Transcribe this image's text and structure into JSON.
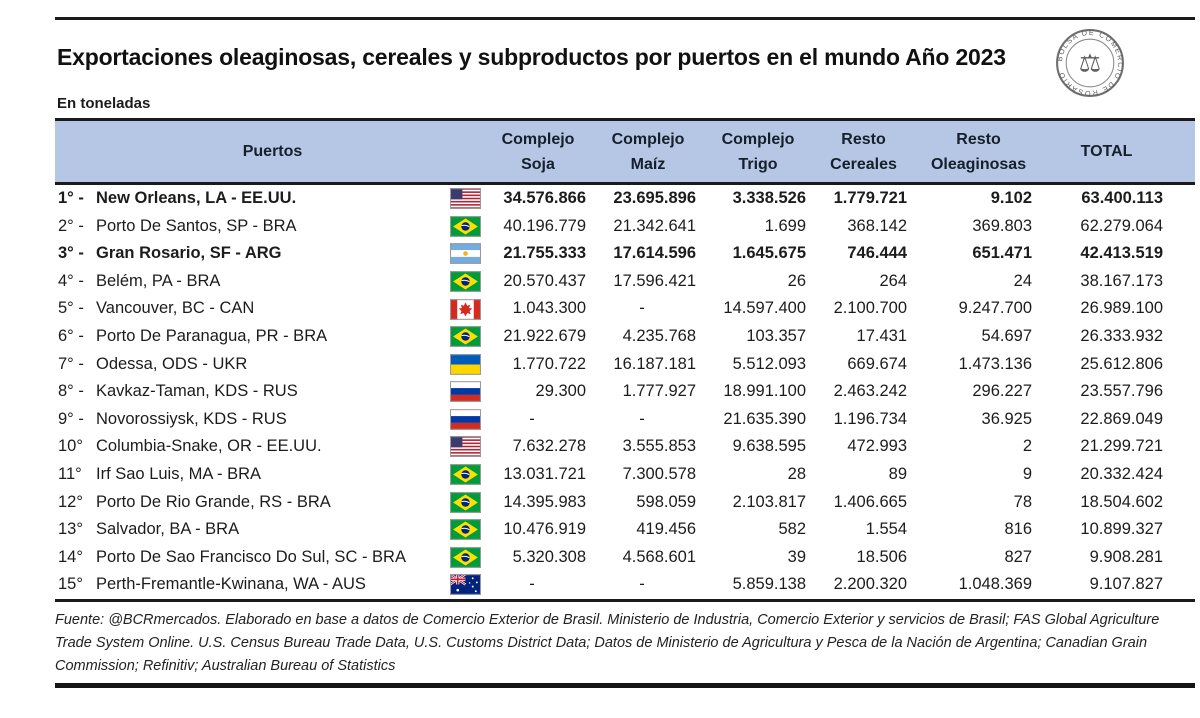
{
  "page": {
    "title": "Exportaciones oleaginosas, cereales y subproductos por puertos en el mundo Año 2023",
    "subtitle": "En toneladas"
  },
  "logo": {
    "text": "BOLSA DE COMERCIO DE ROSARIO",
    "icon": "scales-icon"
  },
  "colors": {
    "header_bg": "#b5c7e5",
    "rule": "#1b1b1b",
    "text": "#1c1c1c"
  },
  "table": {
    "columns": [
      {
        "id": "puertos",
        "line1": "Puertos",
        "line2": ""
      },
      {
        "id": "soja",
        "line1": "Complejo",
        "line2": "Soja"
      },
      {
        "id": "maiz",
        "line1": "Complejo",
        "line2": "Maíz"
      },
      {
        "id": "trigo",
        "line1": "Complejo",
        "line2": "Trigo"
      },
      {
        "id": "cereales",
        "line1": "Resto",
        "line2": "Cereales"
      },
      {
        "id": "oleaginosas",
        "line1": "Resto",
        "line2": "Oleaginosas"
      },
      {
        "id": "total",
        "line1": "TOTAL",
        "line2": ""
      }
    ],
    "rows": [
      {
        "rank": "1° -",
        "name": "New Orleans,  LA - EE.UU.",
        "flag": "us",
        "bold": true,
        "values": [
          "34.576.866",
          "23.695.896",
          "3.338.526",
          "1.779.721",
          "9.102",
          "63.400.113"
        ]
      },
      {
        "rank": "2° -",
        "name": "Porto De Santos, SP - BRA",
        "flag": "br",
        "bold": false,
        "values": [
          "40.196.779",
          "21.342.641",
          "1.699",
          "368.142",
          "369.803",
          "62.279.064"
        ]
      },
      {
        "rank": "3° -",
        "name": "Gran Rosario, SF - ARG",
        "flag": "ar",
        "bold": true,
        "values": [
          "21.755.333",
          "17.614.596",
          "1.645.675",
          "746.444",
          "651.471",
          "42.413.519"
        ]
      },
      {
        "rank": "4° -",
        "name": "Belém, PA - BRA",
        "flag": "br",
        "bold": false,
        "values": [
          "20.570.437",
          "17.596.421",
          "26",
          "264",
          "24",
          "38.167.173"
        ]
      },
      {
        "rank": "5° -",
        "name": "Vancouver, BC - CAN",
        "flag": "ca",
        "bold": false,
        "values": [
          "1.043.300",
          "-",
          "14.597.400",
          "2.100.700",
          "9.247.700",
          "26.989.100"
        ]
      },
      {
        "rank": "6° -",
        "name": "Porto De Paranagua, PR - BRA",
        "flag": "br",
        "bold": false,
        "values": [
          "21.922.679",
          "4.235.768",
          "103.357",
          "17.431",
          "54.697",
          "26.333.932"
        ]
      },
      {
        "rank": "7° -",
        "name": "Odessa, ODS - UKR",
        "flag": "ua",
        "bold": false,
        "values": [
          "1.770.722",
          "16.187.181",
          "5.512.093",
          "669.674",
          "1.473.136",
          "25.612.806"
        ]
      },
      {
        "rank": "8° -",
        "name": "Kavkaz-Taman, KDS - RUS",
        "flag": "ru",
        "bold": false,
        "values": [
          "29.300",
          "1.777.927",
          "18.991.100",
          "2.463.242",
          "296.227",
          "23.557.796"
        ]
      },
      {
        "rank": "9° -",
        "name": "Novorossiysk, KDS - RUS",
        "flag": "ru",
        "bold": false,
        "values": [
          "-",
          "-",
          "21.635.390",
          "1.196.734",
          "36.925",
          "22.869.049"
        ]
      },
      {
        "rank": "10°",
        "name": "Columbia-Snake,  OR - EE.UU.",
        "flag": "us",
        "bold": false,
        "values": [
          "7.632.278",
          "3.555.853",
          "9.638.595",
          "472.993",
          "2",
          "21.299.721"
        ]
      },
      {
        "rank": "11°",
        "name": "Irf Sao Luis, MA - BRA",
        "flag": "br",
        "bold": false,
        "values": [
          "13.031.721",
          "7.300.578",
          "28",
          "89",
          "9",
          "20.332.424"
        ]
      },
      {
        "rank": "12°",
        "name": "Porto De Rio Grande, RS - BRA",
        "flag": "br",
        "bold": false,
        "values": [
          "14.395.983",
          "598.059",
          "2.103.817",
          "1.406.665",
          "78",
          "18.504.602"
        ]
      },
      {
        "rank": "13°",
        "name": "Salvador, BA - BRA",
        "flag": "br",
        "bold": false,
        "values": [
          "10.476.919",
          "419.456",
          "582",
          "1.554",
          "816",
          "10.899.327"
        ]
      },
      {
        "rank": "14°",
        "name": "Porto De Sao Francisco Do Sul, SC - BRA",
        "flag": "br",
        "bold": false,
        "values": [
          "5.320.308",
          "4.568.601",
          "39",
          "18.506",
          "827",
          "9.908.281"
        ]
      },
      {
        "rank": "15°",
        "name": "Perth-Fremantle-Kwinana, WA - AUS",
        "flag": "au",
        "bold": false,
        "values": [
          "-",
          "-",
          "5.859.138",
          "2.200.320",
          "1.048.369",
          "9.107.827"
        ]
      }
    ]
  },
  "footer": {
    "source": "Fuente: @BCRmercados. Elaborado en base a datos de Comercio Exterior de Brasil. Ministerio de Industria, Comercio Exterior y servicios de Brasil; FAS Global Agriculture Trade System Online. U.S. Census Bureau Trade Data, U.S. Customs District Data; Datos de Ministerio de Agricultura y Pesca de la Nación de Argentina; Canadian Grain Commission; Refinitiv; Australian Bureau of Statistics"
  }
}
